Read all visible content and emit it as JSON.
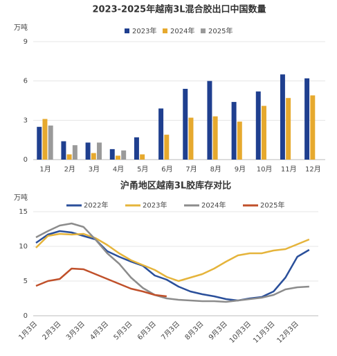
{
  "chart_data": [
    {
      "type": "bar",
      "title": "2023-2025年越南3L混合胶出口中国数量",
      "y_label": "万吨",
      "categories": [
        "1月",
        "2月",
        "3月",
        "4月",
        "5月",
        "6月",
        "7月",
        "8月",
        "9月",
        "10月",
        "11月",
        "12月"
      ],
      "series": [
        {
          "name": "2023年",
          "color": "#1f3f8f",
          "values": [
            2.5,
            1.4,
            1.3,
            0.8,
            1.7,
            3.9,
            5.4,
            6.0,
            4.4,
            5.2,
            6.5,
            6.2
          ]
        },
        {
          "name": "2024年",
          "color": "#e6a92e",
          "values": [
            3.1,
            0.4,
            0.5,
            0.3,
            0.4,
            1.9,
            3.2,
            3.3,
            2.9,
            4.1,
            4.7,
            4.9
          ]
        },
        {
          "name": "2025年",
          "color": "#9a9a9a",
          "values": [
            2.6,
            1.1,
            1.3,
            0.7,
            null,
            null,
            null,
            null,
            null,
            null,
            null,
            null
          ]
        }
      ],
      "ylim": [
        0,
        9
      ],
      "yticks": [
        0,
        3,
        6,
        9
      ],
      "grid": true
    },
    {
      "type": "line",
      "title": "沪甬地区越南3L胶库存对比",
      "y_label": "万吨",
      "categories": [
        "1月3日",
        null,
        "2月3日",
        null,
        "3月3日",
        null,
        "4月3日",
        null,
        "5月3日",
        null,
        "6月3日",
        null,
        "7月3日",
        null,
        "8月3日",
        null,
        "9月3日",
        null,
        "10月3日",
        null,
        "11月3日",
        null,
        "12月3日",
        null
      ],
      "series": [
        {
          "name": "2022年",
          "color": "#2a4f9a",
          "values": [
            10.5,
            11.7,
            12.2,
            12.0,
            11.5,
            11.0,
            9.3,
            8.5,
            7.8,
            7.2,
            5.8,
            5.2,
            4.2,
            3.5,
            3.1,
            2.8,
            2.4,
            2.2,
            2.5,
            2.7,
            3.5,
            5.5,
            8.5,
            9.5
          ]
        },
        {
          "name": "2023年",
          "color": "#e5b43b",
          "values": [
            9.8,
            11.5,
            11.8,
            11.7,
            11.8,
            11.2,
            10.2,
            9.0,
            8.0,
            7.3,
            6.6,
            5.6,
            5.0,
            5.5,
            6.0,
            6.8,
            7.8,
            8.7,
            9.0,
            9.0,
            9.4,
            9.6,
            10.3,
            11.0
          ]
        },
        {
          "name": "2024年",
          "color": "#8c8c8c",
          "values": [
            11.3,
            12.2,
            13.0,
            13.3,
            12.8,
            11.0,
            9.0,
            7.5,
            5.5,
            4.0,
            3.0,
            2.5,
            2.3,
            2.2,
            2.1,
            2.1,
            2.0,
            2.2,
            2.4,
            2.6,
            3.0,
            3.8,
            4.1,
            4.2
          ]
        },
        {
          "name": "2025年",
          "color": "#c0502a",
          "values": [
            4.3,
            5.0,
            5.3,
            6.8,
            6.7,
            6.0,
            5.3,
            4.6,
            3.9,
            3.5,
            3.0,
            2.8,
            null,
            null,
            null,
            null,
            null,
            null,
            null,
            null,
            null,
            null,
            null,
            null
          ]
        }
      ],
      "ylim": [
        0,
        15
      ],
      "yticks": [
        0,
        5,
        10,
        15
      ],
      "grid": true
    }
  ]
}
